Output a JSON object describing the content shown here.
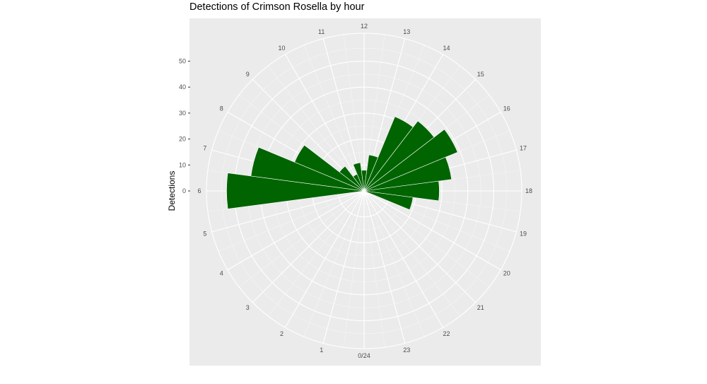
{
  "chart_data": {
    "type": "bar",
    "coord": "polar",
    "title": "Detections of Crimson Rosella by hour",
    "xlabel": "",
    "ylabel": "Detections",
    "categories": [
      "0/24",
      "1",
      "2",
      "3",
      "4",
      "5",
      "6",
      "7",
      "8",
      "9",
      "10",
      "11",
      "12",
      "13",
      "14",
      "15",
      "16",
      "17",
      "18",
      "19",
      "20",
      "21",
      "22",
      "23"
    ],
    "values": [
      0,
      0,
      0,
      0,
      0,
      0,
      53,
      44,
      29,
      12,
      7,
      11,
      8,
      14,
      31,
      34,
      39,
      34,
      29,
      19,
      1,
      0,
      0,
      0
    ],
    "y_ticks": [
      "0",
      "10",
      "20",
      "30",
      "40",
      "50"
    ],
    "ylim": [
      0,
      60
    ],
    "bar_color": "#006400",
    "grid": true
  }
}
